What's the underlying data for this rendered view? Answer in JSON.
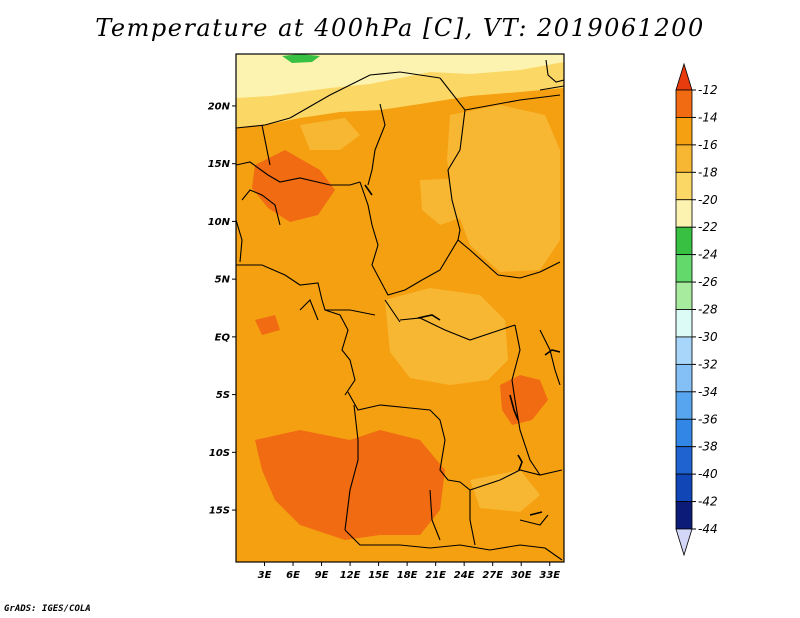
{
  "chart_data": {
    "type": "heatmap",
    "title": "Temperature at 400hPa [C], VT: 2019061200",
    "variable": "Temperature",
    "units": "C",
    "level": "400hPa",
    "valid_time": "2019061200",
    "x_range": [
      0,
      34.5
    ],
    "y_range": [
      -19.5,
      24.5
    ],
    "xticks": [
      "3E",
      "6E",
      "9E",
      "12E",
      "15E",
      "18E",
      "21E",
      "24E",
      "27E",
      "30E",
      "33E"
    ],
    "xtick_values": [
      3,
      6,
      9,
      12,
      15,
      18,
      21,
      24,
      27,
      30,
      33
    ],
    "yticks": [
      "20N",
      "15N",
      "10N",
      "5N",
      "EQ",
      "5S",
      "10S",
      "15S"
    ],
    "ytick_values": [
      20,
      15,
      10,
      5,
      0,
      -5,
      -10,
      -15
    ],
    "colorbar": {
      "labels": [
        "-12",
        "-14",
        "-16",
        "-18",
        "-20",
        "-22",
        "-24",
        "-26",
        "-28",
        "-30",
        "-32",
        "-34",
        "-36",
        "-38",
        "-40",
        "-42",
        "-44"
      ],
      "colors": [
        "#e83c0f",
        "#f06b12",
        "#f5a011",
        "#f8b733",
        "#fbd766",
        "#fdf3b0",
        "#38c043",
        "#63d96b",
        "#a7ec9e",
        "#ddfbf6",
        "#a8d6fa",
        "#84bff5",
        "#56a5ee",
        "#3286e6",
        "#1f63d1",
        "#1046b6",
        "#0d1b78",
        "#d4d8f8"
      ]
    },
    "fields": [
      {
        "name": "base",
        "value_range": "-16 to -14",
        "color": "#f5a011"
      },
      {
        "name": "north-band",
        "value_range": "-20 to -18",
        "color": "#fbd766"
      },
      {
        "name": "north-edge",
        "value_range": "-22 to -20",
        "color": "#fdf3b0"
      },
      {
        "name": "green-spot",
        "value_range": "-24 to -22",
        "color": "#38c043"
      },
      {
        "name": "interior-light",
        "value_range": "-18 to -16",
        "color": "#f8b733"
      },
      {
        "name": "warm-cores",
        "value_range": "-14 to -12",
        "color": "#f06b12"
      }
    ]
  },
  "footer": "GrADS: IGES/COLA"
}
